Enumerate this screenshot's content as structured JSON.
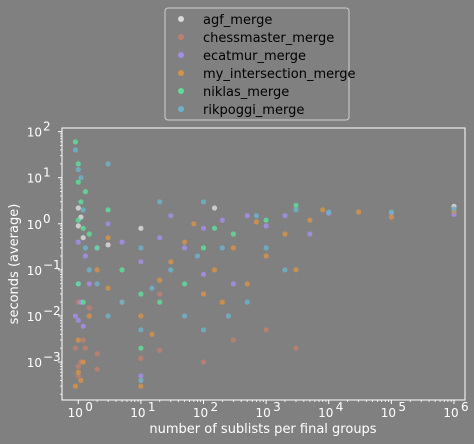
{
  "chart_data": {
    "type": "scatter",
    "title": "",
    "xlabel": "number of sublists per final groups",
    "ylabel": "seconds (average)",
    "x_scale": "log",
    "y_scale": "log",
    "xlim": [
      0.55,
      1500000
    ],
    "ylim": [
      0.00015,
      120
    ],
    "x_ticks": [
      {
        "value": 1,
        "label": "10",
        "exp": "0"
      },
      {
        "value": 10,
        "label": "10",
        "exp": "1"
      },
      {
        "value": 100,
        "label": "10",
        "exp": "2"
      },
      {
        "value": 1000,
        "label": "10",
        "exp": "3"
      },
      {
        "value": 100000,
        "label": "10",
        "exp": "5"
      },
      {
        "value": 1000000,
        "label": "10",
        "exp": "6"
      }
    ],
    "x_ticks_extra": [
      {
        "value": 10000,
        "label": "10",
        "exp": "4"
      }
    ],
    "y_ticks": [
      {
        "value": 0.001,
        "label": "10",
        "exp": "−3"
      },
      {
        "value": 0.01,
        "label": "10",
        "exp": "−2"
      },
      {
        "value": 0.1,
        "label": "10",
        "exp": "−1"
      },
      {
        "value": 1,
        "label": "10",
        "exp": "0"
      },
      {
        "value": 10,
        "label": "10",
        "exp": "1"
      },
      {
        "value": 100,
        "label": "10",
        "exp": "2"
      }
    ],
    "grid": false,
    "legend_position": "top-center",
    "series": [
      {
        "name": "agf_merge",
        "color": "#d9d9d9",
        "points": [
          [
            1,
            2.2
          ],
          [
            1,
            0.9
          ],
          [
            1.1,
            1.4
          ],
          [
            1.2,
            0.5
          ],
          [
            3,
            0.35
          ],
          [
            10,
            0.8
          ],
          [
            150,
            2.2
          ],
          [
            1000000,
            2.4
          ]
        ]
      },
      {
        "name": "chessmaster_merge",
        "color": "#c0806e",
        "points": [
          [
            0.9,
            0.002
          ],
          [
            1,
            0.0005
          ],
          [
            1,
            0.0008
          ],
          [
            1.1,
            0.001
          ],
          [
            1.2,
            0.003
          ],
          [
            1.3,
            0.002
          ],
          [
            2,
            0.0015
          ],
          [
            2,
            0.0007
          ],
          [
            10,
            0.0012
          ],
          [
            10,
            0.0004
          ],
          [
            20,
            0.0018
          ],
          [
            100,
            0.001
          ],
          [
            300,
            0.003
          ],
          [
            1000,
            0.005
          ],
          [
            3000,
            0.002
          ],
          [
            1,
            0.02
          ],
          [
            1.5,
            0.015
          ],
          [
            20,
            0.03
          ]
        ]
      },
      {
        "name": "ecatmur_merge",
        "color": "#a48de6",
        "points": [
          [
            0.9,
            0.01
          ],
          [
            1,
            0.05
          ],
          [
            1,
            0.008
          ],
          [
            1.1,
            0.02
          ],
          [
            1.2,
            0.006
          ],
          [
            1,
            0.4
          ],
          [
            1.3,
            0.2
          ],
          [
            1.5,
            0.05
          ],
          [
            2,
            0.3
          ],
          [
            3,
            1.0
          ],
          [
            5,
            0.4
          ],
          [
            10,
            0.15
          ],
          [
            10,
            0.0005
          ],
          [
            20,
            0.5
          ],
          [
            30,
            1.5
          ],
          [
            50,
            0.3
          ],
          [
            100,
            0.8
          ],
          [
            100,
            0.08
          ],
          [
            200,
            1.2
          ],
          [
            300,
            0.05
          ],
          [
            500,
            1.5
          ],
          [
            1000,
            0.9
          ],
          [
            2000,
            1.5
          ],
          [
            5000,
            0.6
          ],
          [
            10000,
            1.7
          ],
          [
            100000,
            1.7
          ],
          [
            1000000,
            1.6
          ]
        ]
      },
      {
        "name": "my_intersection_merge",
        "color": "#d4924a",
        "points": [
          [
            0.9,
            0.0003
          ],
          [
            1,
            0.0006
          ],
          [
            1,
            0.003
          ],
          [
            1.1,
            0.0004
          ],
          [
            1.2,
            0.001
          ],
          [
            1.5,
            0.01
          ],
          [
            2,
            0.1
          ],
          [
            3,
            0.5
          ],
          [
            3,
            0.04
          ],
          [
            5,
            0.02
          ],
          [
            10,
            0.0003
          ],
          [
            10,
            0.01
          ],
          [
            15,
            0.004
          ],
          [
            20,
            0.06
          ],
          [
            30,
            0.15
          ],
          [
            50,
            0.4
          ],
          [
            70,
            1.0
          ],
          [
            100,
            0.03
          ],
          [
            150,
            0.1
          ],
          [
            200,
            0.02
          ],
          [
            300,
            0.3
          ],
          [
            500,
            0.05
          ],
          [
            700,
            1.1
          ],
          [
            1000,
            0.2
          ],
          [
            2000,
            0.6
          ],
          [
            3000,
            0.1
          ],
          [
            5000,
            1.2
          ],
          [
            8000,
            2.0
          ],
          [
            30000,
            1.8
          ],
          [
            100000,
            1.4
          ],
          [
            1000000,
            1.9
          ]
        ]
      },
      {
        "name": "niklas_merge",
        "color": "#5fdc9a",
        "points": [
          [
            0.9,
            60
          ],
          [
            1,
            20
          ],
          [
            1,
            8
          ],
          [
            1.1,
            3
          ],
          [
            1,
            1.2
          ],
          [
            1.2,
            0.8
          ],
          [
            1.3,
            5
          ],
          [
            1.5,
            0.6
          ],
          [
            2,
            0.3
          ],
          [
            3,
            2
          ],
          [
            1,
            0.05
          ],
          [
            1.2,
            0.02
          ],
          [
            5,
            0.1
          ],
          [
            10,
            0.002
          ],
          [
            10,
            0.03
          ],
          [
            20,
            0.02
          ],
          [
            50,
            0.05
          ],
          [
            100,
            0.3
          ],
          [
            150,
            0.8
          ],
          [
            300,
            0.6
          ],
          [
            1000,
            1.2
          ],
          [
            3000,
            2.5
          ]
        ]
      },
      {
        "name": "rikpoggi_merge",
        "color": "#6cb2c8",
        "points": [
          [
            0.9,
            40
          ],
          [
            1,
            15
          ],
          [
            1.1,
            10
          ],
          [
            1.2,
            2
          ],
          [
            1.3,
            0.3
          ],
          [
            1.5,
            0.1
          ],
          [
            2,
            0.05
          ],
          [
            3,
            20
          ],
          [
            3,
            0.01
          ],
          [
            5,
            0.02
          ],
          [
            10,
            0.0004
          ],
          [
            10,
            0.005
          ],
          [
            10,
            0.3
          ],
          [
            15,
            0.04
          ],
          [
            20,
            3
          ],
          [
            30,
            0.1
          ],
          [
            50,
            0.01
          ],
          [
            80,
            0.2
          ],
          [
            100,
            3
          ],
          [
            100,
            0.005
          ],
          [
            200,
            0.3
          ],
          [
            250,
            0.01
          ],
          [
            500,
            0.02
          ],
          [
            700,
            1.5
          ],
          [
            1000,
            0.3
          ],
          [
            2000,
            0.1
          ],
          [
            3000,
            2
          ],
          [
            10000,
            1.8
          ],
          [
            100000,
            1.8
          ],
          [
            1000000,
            2.1
          ]
        ]
      }
    ]
  }
}
